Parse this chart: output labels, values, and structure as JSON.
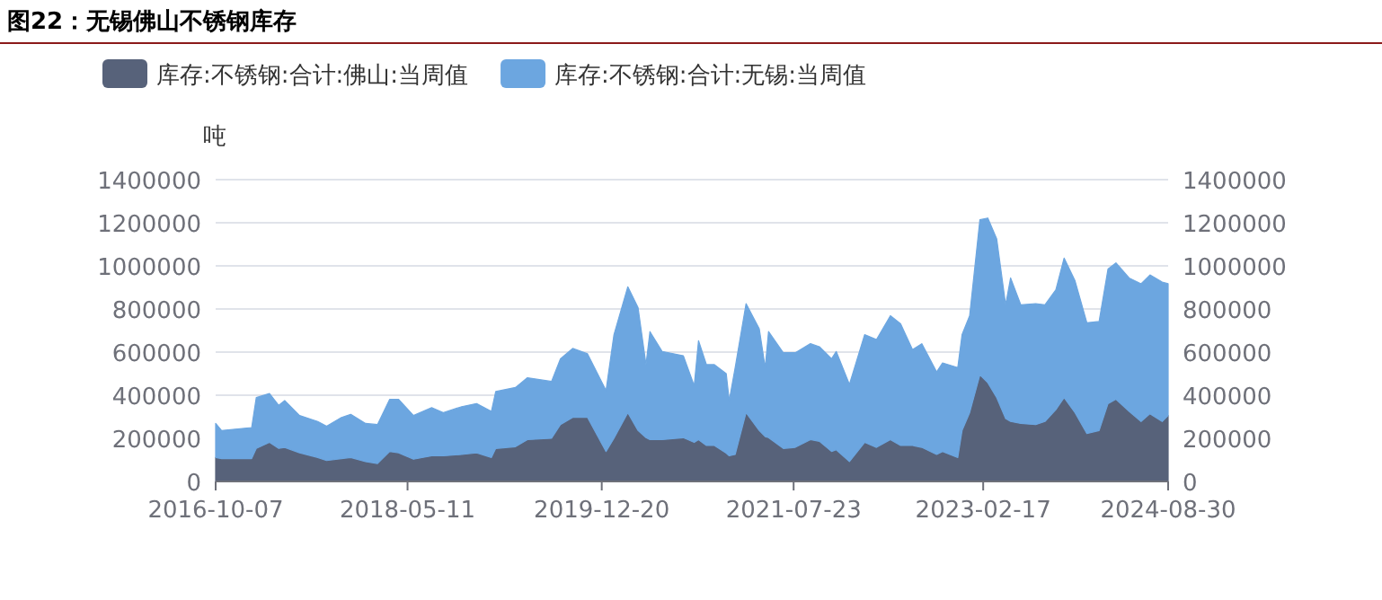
{
  "chart_data": {
    "type": "area",
    "stacked": true,
    "title": "图22：无锡佛山不锈钢库存",
    "ylabel": "吨",
    "legend": "top",
    "grid": "y",
    "x": [
      "2016-10-07",
      "2016-10-25",
      "2017-01-24",
      "2017-02-07",
      "2017-03-19",
      "2017-04-16",
      "2017-05-04",
      "2017-06-18",
      "2017-08-12",
      "2017-09-08",
      "2017-10-23",
      "2017-11-20",
      "2018-01-04",
      "2018-02-09",
      "2018-03-18",
      "2018-04-14",
      "2018-05-29",
      "2018-07-23",
      "2018-08-28",
      "2018-10-22",
      "2018-12-06",
      "2019-01-20",
      "2019-02-02",
      "2019-04-03",
      "2019-05-09",
      "2019-07-21",
      "2019-08-17",
      "2019-09-23",
      "2019-11-07",
      "2020-01-02",
      "2020-01-26",
      "2020-03-08",
      "2020-04-08",
      "2020-05-02",
      "2020-05-14",
      "2020-06-20",
      "2020-08-23",
      "2020-09-25",
      "2020-10-08",
      "2020-11-01",
      "2020-11-25",
      "2020-12-31",
      "2021-01-09",
      "2021-01-27",
      "2021-03-01",
      "2021-04-10",
      "2021-04-28",
      "2021-05-08",
      "2021-06-22",
      "2021-07-28",
      "2021-09-12",
      "2021-10-09",
      "2021-11-15",
      "2021-11-29",
      "2022-01-08",
      "2022-02-23",
      "2022-03-31",
      "2022-05-12",
      "2022-06-12",
      "2022-07-18",
      "2022-08-15",
      "2022-09-29",
      "2022-10-17",
      "2022-12-02",
      "2022-12-15",
      "2023-01-07",
      "2023-02-07",
      "2023-03-03",
      "2023-03-30",
      "2023-04-26",
      "2023-05-11",
      "2023-06-11",
      "2023-07-26",
      "2023-08-23",
      "2023-09-25",
      "2023-10-20",
      "2023-11-22",
      "2023-12-28",
      "2024-02-03",
      "2024-03-01",
      "2024-03-25",
      "2024-05-04",
      "2024-06-09",
      "2024-07-06",
      "2024-08-12",
      "2024-08-30"
    ],
    "series": [
      {
        "name": "库存:不锈钢:合计:佛山:当周值",
        "color": "#57627a",
        "values": [
          111000,
          106000,
          106000,
          153000,
          181000,
          153000,
          158000,
          133000,
          111000,
          97000,
          106000,
          111000,
          92000,
          83000,
          139000,
          133000,
          103000,
          119000,
          119000,
          125000,
          133000,
          111000,
          153000,
          161000,
          194000,
          200000,
          264000,
          297000,
          297000,
          139000,
          200000,
          319000,
          236000,
          203000,
          194000,
          194000,
          203000,
          181000,
          194000,
          167000,
          167000,
          131000,
          119000,
          125000,
          319000,
          236000,
          208000,
          203000,
          153000,
          158000,
          194000,
          186000,
          139000,
          147000,
          92000,
          181000,
          158000,
          194000,
          167000,
          167000,
          158000,
          125000,
          139000,
          111000,
          236000,
          319000,
          494000,
          458000,
          389000,
          292000,
          278000,
          269000,
          264000,
          278000,
          333000,
          389000,
          319000,
          222000,
          236000,
          361000,
          381000,
          325000,
          278000,
          314000,
          278000,
          306000
        ]
      },
      {
        "name": "库存:不锈钢:合计:无锡:当周值",
        "color": "#6ca6e0",
        "values": [
          158000,
          130000,
          144000,
          236000,
          227000,
          200000,
          217000,
          173000,
          167000,
          159000,
          191000,
          200000,
          177000,
          181000,
          242000,
          248000,
          203000,
          223000,
          200000,
          222000,
          228000,
          214000,
          264000,
          275000,
          287000,
          264000,
          305000,
          320000,
          295000,
          283000,
          481000,
          584000,
          570000,
          339000,
          501000,
          409000,
          380000,
          263000,
          459000,
          375000,
          375000,
          369000,
          256000,
          403000,
          506000,
          472000,
          320000,
          492000,
          444000,
          439000,
          445000,
          439000,
          430000,
          456000,
          358000,
          500000,
          500000,
          575000,
          564000,
          444000,
          481000,
          383000,
          411000,
          417000,
          445000,
          450000,
          720000,
          764000,
          736000,
          527000,
          666000,
          550000,
          561000,
          541000,
          556000,
          647000,
          612000,
          514000,
          506000,
          625000,
          633000,
          619000,
          639000,
          644000,
          647000,
          611000
        ]
      }
    ],
    "xlim": [
      "2016-10-07",
      "2024-08-30"
    ],
    "xticks": [
      "2016-10-07",
      "2018-05-11",
      "2019-12-20",
      "2021-07-23",
      "2023-02-17",
      "2024-08-30"
    ],
    "ylim": [
      0,
      1400000
    ],
    "yticks": [
      0,
      200000,
      400000,
      600000,
      800000,
      1000000,
      1200000,
      1400000
    ],
    "y2lim": [
      0,
      1400000
    ],
    "y2ticks": [
      0,
      200000,
      400000,
      600000,
      800000,
      1000000,
      1200000,
      1400000
    ]
  }
}
